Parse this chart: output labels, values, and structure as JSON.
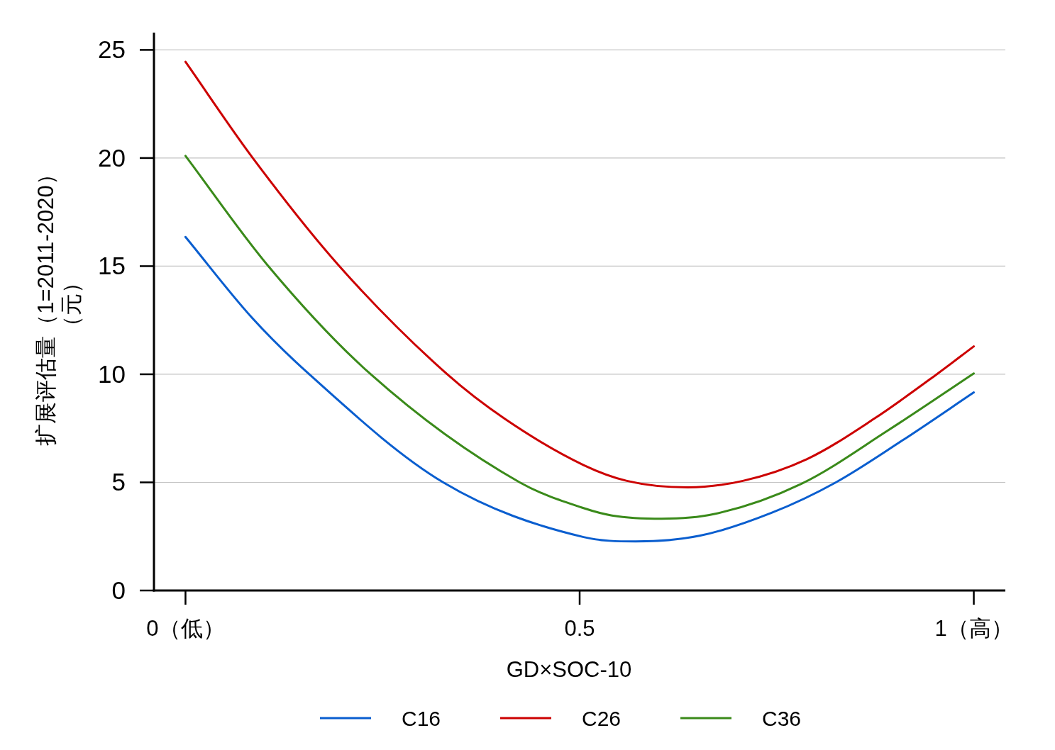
{
  "chart_data": {
    "type": "line",
    "xlabel": "GD×SOC-10",
    "ylabel": "扩展评估量（1=2011-2020）（元）",
    "xlim": [
      -0.04,
      1.04
    ],
    "xticks": [
      {
        "value": 0,
        "label": "0（低）"
      },
      0.5,
      {
        "value": 1,
        "label": "1（高）"
      }
    ],
    "ylim": [
      0,
      25.8
    ],
    "yticks": [
      0,
      5,
      10,
      15,
      20,
      25
    ],
    "grid": "y",
    "legend": "bottom",
    "series": [
      {
        "name": "C16",
        "color": "#0a5ecf",
        "x": [
          0,
          0.084,
          0.157,
          0.327,
          0.505,
          0.571,
          0.652,
          0.744,
          0.825,
          0.909,
          1
        ],
        "values": [
          16.35,
          12.63,
          10.0,
          5.0,
          2.47,
          2.27,
          2.53,
          3.6,
          5.0,
          6.93,
          9.16
        ]
      },
      {
        "name": "C26",
        "color": "#cc0000",
        "x": [
          0,
          0.084,
          0.194,
          0.332,
          0.405,
          0.505,
          0.56,
          0.637,
          0.707,
          0.788,
          0.873,
          0.953,
          1
        ],
        "values": [
          24.45,
          20.07,
          15.05,
          10.0,
          7.94,
          5.8,
          5.07,
          4.77,
          5.07,
          6.07,
          7.93,
          10.0,
          11.29
        ]
      },
      {
        "name": "C36",
        "color": "#3a8a1a",
        "x": [
          0,
          0.104,
          0.235,
          0.424,
          0.505,
          0.541,
          0.604,
          0.67,
          0.781,
          0.891,
          1
        ],
        "values": [
          20.1,
          15.05,
          10.0,
          5.0,
          3.81,
          3.47,
          3.32,
          3.53,
          4.93,
          7.4,
          10.04
        ]
      }
    ]
  }
}
